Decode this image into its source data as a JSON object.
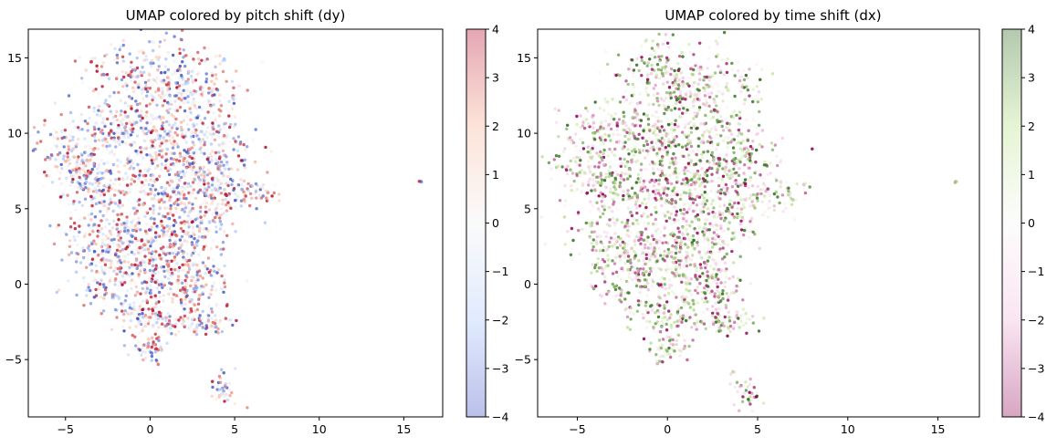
{
  "chart_data": [
    {
      "type": "scatter",
      "title": "UMAP colored by pitch shift (dy)",
      "xlabel": "",
      "ylabel": "",
      "xlim": [
        -7.2,
        17.3
      ],
      "ylim": [
        -8.8,
        16.9
      ],
      "xticks": [
        -5,
        0,
        5,
        10,
        15
      ],
      "yticks": [
        -5,
        0,
        5,
        10,
        15
      ],
      "xtick_labels": [
        "−5",
        "0",
        "5",
        "10",
        "15"
      ],
      "ytick_labels": [
        "−5",
        "0",
        "5",
        "10",
        "15"
      ],
      "grid": false,
      "colormap": "coolwarm",
      "color_stops": [
        "#3b4cc0",
        "#aac7fd",
        "#f2f2f2",
        "#f7b093",
        "#b40426"
      ],
      "colorbar": {
        "range": [
          -4,
          4
        ],
        "ticks": [
          -4,
          -3,
          -2,
          -1,
          0,
          1,
          2,
          3,
          4
        ],
        "tick_labels": [
          "−4",
          "−3",
          "−2",
          "−1",
          "0",
          "1",
          "2",
          "3",
          "4"
        ]
      },
      "clusters": [
        {
          "x": 0.3,
          "y": 13.8,
          "sx": 1.9,
          "sy": 1.3,
          "n": 260
        },
        {
          "x": 2.2,
          "y": 12.6,
          "sx": 1.4,
          "sy": 1.0,
          "n": 130
        },
        {
          "x": -2.3,
          "y": 10.2,
          "sx": 1.7,
          "sy": 1.2,
          "n": 220
        },
        {
          "x": 1.2,
          "y": 9.6,
          "sx": 1.7,
          "sy": 1.2,
          "n": 220
        },
        {
          "x": 3.8,
          "y": 8.4,
          "sx": 1.2,
          "sy": 1.3,
          "n": 160
        },
        {
          "x": -4.6,
          "y": 8.3,
          "sx": 1.0,
          "sy": 1.0,
          "n": 110
        },
        {
          "x": -3.0,
          "y": 6.5,
          "sx": 1.2,
          "sy": 1.2,
          "n": 150
        },
        {
          "x": 0.4,
          "y": 6.4,
          "sx": 1.7,
          "sy": 1.1,
          "n": 220
        },
        {
          "x": 3.4,
          "y": 5.4,
          "sx": 1.2,
          "sy": 1.3,
          "n": 160
        },
        {
          "x": 6.2,
          "y": 6.0,
          "sx": 0.9,
          "sy": 0.5,
          "n": 60
        },
        {
          "x": -2.5,
          "y": 3.3,
          "sx": 1.4,
          "sy": 1.0,
          "n": 160
        },
        {
          "x": 1.4,
          "y": 3.2,
          "sx": 1.5,
          "sy": 1.0,
          "n": 170
        },
        {
          "x": -2.4,
          "y": 0.6,
          "sx": 1.1,
          "sy": 1.3,
          "n": 150
        },
        {
          "x": 0.4,
          "y": 0.6,
          "sx": 1.3,
          "sy": 1.6,
          "n": 260
        },
        {
          "x": 2.7,
          "y": 0.0,
          "sx": 0.9,
          "sy": 1.1,
          "n": 120
        },
        {
          "x": 3.4,
          "y": -2.5,
          "sx": 0.8,
          "sy": 0.4,
          "n": 70
        },
        {
          "x": 0.1,
          "y": -2.3,
          "sx": 1.1,
          "sy": 0.5,
          "n": 80
        },
        {
          "x": 0.0,
          "y": -4.3,
          "sx": 0.5,
          "sy": 0.5,
          "n": 60
        },
        {
          "x": 4.3,
          "y": -7.0,
          "sx": 0.4,
          "sy": 0.6,
          "n": 40
        },
        {
          "x": 4.9,
          "y": 12.3,
          "sx": 0.1,
          "sy": 0.2,
          "n": 8
        },
        {
          "x": -2.8,
          "y": 13.9,
          "sx": 0.05,
          "sy": 0.05,
          "n": 3
        },
        {
          "x": 16.0,
          "y": 6.8,
          "sx": 0.04,
          "sy": 0.05,
          "n": 4
        }
      ]
    },
    {
      "type": "scatter",
      "title": "UMAP colored by time shift (dx)",
      "xlabel": "",
      "ylabel": "",
      "xlim": [
        -7.2,
        17.3
      ],
      "ylim": [
        -8.8,
        16.9
      ],
      "xticks": [
        -5,
        0,
        5,
        10,
        15
      ],
      "yticks": [
        -5,
        0,
        5,
        10,
        15
      ],
      "xtick_labels": [
        "−5",
        "0",
        "5",
        "10",
        "15"
      ],
      "ytick_labels": [
        "−5",
        "0",
        "5",
        "10",
        "15"
      ],
      "grid": false,
      "colormap": "PiYG",
      "color_stops": [
        "#8e0152",
        "#f1b6da",
        "#f7f7f7",
        "#b8e186",
        "#276419"
      ],
      "colorbar": {
        "range": [
          -4,
          4
        ],
        "ticks": [
          -4,
          -3,
          -2,
          -1,
          0,
          1,
          2,
          3,
          4
        ],
        "tick_labels": [
          "−4",
          "−3",
          "−2",
          "−1",
          "0",
          "1",
          "2",
          "3",
          "4"
        ]
      },
      "clusters": [
        {
          "x": 0.3,
          "y": 13.8,
          "sx": 1.9,
          "sy": 1.3,
          "n": 260
        },
        {
          "x": 2.2,
          "y": 12.6,
          "sx": 1.4,
          "sy": 1.0,
          "n": 130
        },
        {
          "x": -2.3,
          "y": 10.2,
          "sx": 1.7,
          "sy": 1.2,
          "n": 220
        },
        {
          "x": 1.2,
          "y": 9.6,
          "sx": 1.7,
          "sy": 1.2,
          "n": 220
        },
        {
          "x": 3.8,
          "y": 8.4,
          "sx": 1.2,
          "sy": 1.3,
          "n": 160
        },
        {
          "x": -4.6,
          "y": 8.3,
          "sx": 1.0,
          "sy": 1.0,
          "n": 110
        },
        {
          "x": -3.0,
          "y": 6.5,
          "sx": 1.2,
          "sy": 1.2,
          "n": 150
        },
        {
          "x": 0.4,
          "y": 6.4,
          "sx": 1.7,
          "sy": 1.1,
          "n": 220
        },
        {
          "x": 3.4,
          "y": 5.4,
          "sx": 1.2,
          "sy": 1.3,
          "n": 160
        },
        {
          "x": 6.2,
          "y": 6.0,
          "sx": 0.9,
          "sy": 0.5,
          "n": 60
        },
        {
          "x": -2.5,
          "y": 3.3,
          "sx": 1.4,
          "sy": 1.0,
          "n": 160
        },
        {
          "x": 1.4,
          "y": 3.2,
          "sx": 1.5,
          "sy": 1.0,
          "n": 170
        },
        {
          "x": -2.4,
          "y": 0.6,
          "sx": 1.1,
          "sy": 1.3,
          "n": 150
        },
        {
          "x": 0.4,
          "y": 0.6,
          "sx": 1.3,
          "sy": 1.6,
          "n": 260
        },
        {
          "x": 2.7,
          "y": 0.0,
          "sx": 0.9,
          "sy": 1.1,
          "n": 120
        },
        {
          "x": 3.4,
          "y": -2.5,
          "sx": 0.8,
          "sy": 0.4,
          "n": 70
        },
        {
          "x": 0.1,
          "y": -2.3,
          "sx": 1.1,
          "sy": 0.5,
          "n": 80
        },
        {
          "x": 0.0,
          "y": -4.3,
          "sx": 0.5,
          "sy": 0.5,
          "n": 60
        },
        {
          "x": 4.3,
          "y": -7.0,
          "sx": 0.4,
          "sy": 0.6,
          "n": 40
        },
        {
          "x": 4.9,
          "y": 12.3,
          "sx": 0.1,
          "sy": 0.2,
          "n": 8
        },
        {
          "x": -2.8,
          "y": 13.9,
          "sx": 0.05,
          "sy": 0.05,
          "n": 3
        },
        {
          "x": 16.0,
          "y": 6.8,
          "sx": 0.04,
          "sy": 0.05,
          "n": 4
        }
      ]
    }
  ]
}
